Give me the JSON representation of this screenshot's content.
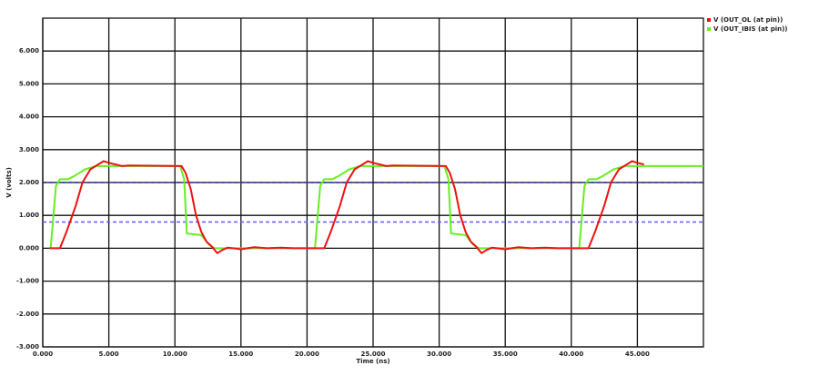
{
  "chart_data": {
    "type": "line",
    "x_label": "Time (ns)",
    "y_label": "V (volts)",
    "xlim": [
      0,
      50
    ],
    "ylim": [
      -3,
      7
    ],
    "xticks": [
      {
        "value": 0,
        "label": "0.000"
      },
      {
        "value": 5,
        "label": "5.000"
      },
      {
        "value": 10,
        "label": "10.000"
      },
      {
        "value": 15,
        "label": "15.000"
      },
      {
        "value": 20,
        "label": "20.000"
      },
      {
        "value": 25,
        "label": "25.000"
      },
      {
        "value": 30,
        "label": "30.000"
      },
      {
        "value": 35,
        "label": "35.000"
      },
      {
        "value": 40,
        "label": "40.000"
      },
      {
        "value": 45,
        "label": "45.000"
      }
    ],
    "yticks": [
      {
        "value": -3,
        "label": "-3.000"
      },
      {
        "value": -2,
        "label": "-2.000"
      },
      {
        "value": -1,
        "label": "-1.000"
      },
      {
        "value": 0,
        "label": "0.000"
      },
      {
        "value": 1,
        "label": "1.000"
      },
      {
        "value": 2,
        "label": "2.000"
      },
      {
        "value": 3,
        "label": "3.000"
      },
      {
        "value": 4,
        "label": "4.000"
      },
      {
        "value": 5,
        "label": "5.000"
      },
      {
        "value": 6,
        "label": "6.000"
      }
    ],
    "grid": true,
    "legend": "top-right",
    "reference_lines": [
      {
        "value": 2,
        "color": "#2a2ab0"
      },
      {
        "value": 0.8,
        "color": "#5a5aff"
      }
    ],
    "series": [
      {
        "name": "V (OUT_OL (at pin))",
        "color": "#ee1111",
        "x": [
          0.5,
          1.3,
          1.8,
          2.5,
          3.0,
          3.6,
          4.2,
          4.6,
          5.0,
          5.5,
          6.0,
          6.5,
          10.5,
          10.8,
          11.2,
          11.6,
          12.0,
          12.4,
          12.8,
          13.2,
          13.6,
          14,
          15,
          16,
          17,
          18,
          19,
          21.3,
          21.8,
          22.5,
          23.0,
          23.6,
          24.2,
          24.6,
          25.0,
          25.5,
          26.0,
          26.5,
          30.5,
          30.8,
          31.2,
          31.6,
          32.0,
          32.4,
          32.8,
          33.2,
          33.6,
          34,
          35,
          36,
          37,
          38,
          39,
          41.3,
          41.8,
          42.5,
          43.0,
          43.6,
          44.2,
          44.6,
          45.0,
          45.5
        ],
        "values": [
          0,
          0,
          0.5,
          1.3,
          2.0,
          2.4,
          2.55,
          2.65,
          2.6,
          2.55,
          2.5,
          2.52,
          2.5,
          2.3,
          1.8,
          1.0,
          0.5,
          0.2,
          0.05,
          -0.15,
          -0.05,
          0.02,
          -0.03,
          0.03,
          0,
          0.02,
          0,
          0,
          0.5,
          1.3,
          2.0,
          2.4,
          2.55,
          2.65,
          2.6,
          2.55,
          2.5,
          2.52,
          2.5,
          2.3,
          1.8,
          1.0,
          0.5,
          0.2,
          0.05,
          -0.15,
          -0.05,
          0.02,
          -0.03,
          0.03,
          0,
          0.02,
          0,
          0,
          0.5,
          1.3,
          2.0,
          2.4,
          2.55,
          2.65,
          2.6,
          2.55
        ]
      },
      {
        "name": "V (OUT_IBIS (at pin))",
        "color": "#66ee22",
        "x": [
          0.5,
          0.6,
          1.0,
          1.3,
          1.9,
          2.4,
          3.2,
          4.0,
          10.4,
          10.7,
          10.9,
          12.0,
          12.6,
          13.0,
          20.0,
          20.6,
          21.0,
          21.3,
          21.9,
          22.4,
          23.2,
          24.0,
          30.4,
          30.7,
          30.9,
          32.0,
          32.6,
          33.0,
          40.0,
          40.6,
          41.0,
          41.3,
          41.9,
          42.4,
          43.2,
          44.0,
          50
        ],
        "values": [
          0,
          0,
          1.9,
          2.1,
          2.1,
          2.2,
          2.4,
          2.5,
          2.5,
          2.1,
          0.45,
          0.4,
          0.1,
          0,
          0,
          0,
          1.9,
          2.1,
          2.1,
          2.2,
          2.4,
          2.5,
          2.5,
          2.1,
          0.45,
          0.4,
          0.1,
          0,
          0,
          0,
          1.9,
          2.1,
          2.1,
          2.2,
          2.4,
          2.5,
          2.5
        ]
      }
    ]
  }
}
